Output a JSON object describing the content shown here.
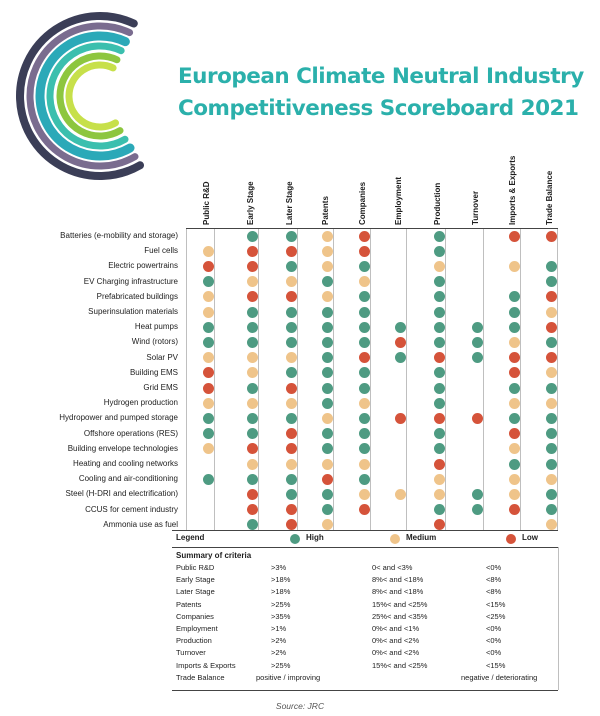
{
  "title_line1": "European Climate Neutral Industry",
  "title_line2": "Competitiveness Scoreboard 2021",
  "colors": {
    "high": "#4e9b82",
    "medium": "#efc48a",
    "low": "#d5533a",
    "title": "#2bb0ab"
  },
  "logo_arcs": [
    "#3b3e57",
    "#7a6c8f",
    "#2ba9b8",
    "#3bbfae",
    "#8dc63f",
    "#c7e04a"
  ],
  "columns": [
    "Public R&D",
    "Early Stage",
    "Later Stage",
    "Patents",
    "Companies",
    "Employment",
    "Production",
    "Turnover",
    "Imports & Exports",
    "Trade Balance"
  ],
  "rows": [
    {
      "label": "Batteries (e-mobility and storage)",
      "cells": [
        "",
        "H",
        "H",
        "M",
        "L",
        "",
        "H",
        "",
        "L",
        "L"
      ]
    },
    {
      "label": "Fuel cells",
      "cells": [
        "M",
        "L",
        "L",
        "M",
        "L",
        "",
        "H",
        "",
        "",
        ""
      ]
    },
    {
      "label": "Electric powertrains",
      "cells": [
        "L",
        "L",
        "H",
        "M",
        "H",
        "",
        "M",
        "",
        "M",
        "H"
      ]
    },
    {
      "label": "EV Charging infrastructure",
      "cells": [
        "H",
        "M",
        "M",
        "H",
        "M",
        "",
        "H",
        "",
        "",
        "H"
      ]
    },
    {
      "label": "Prefabricated buildings",
      "cells": [
        "M",
        "L",
        "L",
        "M",
        "H",
        "",
        "H",
        "",
        "H",
        "L"
      ]
    },
    {
      "label": "Superinsulation materials",
      "cells": [
        "M",
        "H",
        "H",
        "H",
        "H",
        "",
        "H",
        "",
        "H",
        "M"
      ]
    },
    {
      "label": "Heat pumps",
      "cells": [
        "H",
        "H",
        "H",
        "H",
        "H",
        "H",
        "H",
        "H",
        "H",
        "L"
      ]
    },
    {
      "label": "Wind (rotors)",
      "cells": [
        "H",
        "H",
        "H",
        "H",
        "H",
        "L",
        "H",
        "H",
        "M",
        "H"
      ]
    },
    {
      "label": "Solar PV",
      "cells": [
        "M",
        "M",
        "M",
        "H",
        "L",
        "H",
        "L",
        "H",
        "L",
        "L"
      ]
    },
    {
      "label": "Building EMS",
      "cells": [
        "L",
        "M",
        "H",
        "H",
        "H",
        "",
        "H",
        "",
        "L",
        "M"
      ]
    },
    {
      "label": "Grid EMS",
      "cells": [
        "L",
        "H",
        "L",
        "H",
        "H",
        "",
        "H",
        "",
        "H",
        "H"
      ]
    },
    {
      "label": "Hydrogen production",
      "cells": [
        "M",
        "M",
        "M",
        "H",
        "M",
        "",
        "H",
        "",
        "M",
        "M"
      ]
    },
    {
      "label": "Hydropower and pumped storage",
      "cells": [
        "H",
        "H",
        "H",
        "M",
        "H",
        "L",
        "L",
        "L",
        "H",
        "H"
      ]
    },
    {
      "label": "Offshore operations (RES)",
      "cells": [
        "H",
        "H",
        "L",
        "H",
        "H",
        "",
        "H",
        "",
        "L",
        "H"
      ]
    },
    {
      "label": "Building envelope technologies",
      "cells": [
        "M",
        "L",
        "L",
        "H",
        "H",
        "",
        "H",
        "",
        "M",
        "H"
      ]
    },
    {
      "label": "Heating and cooling networks",
      "cells": [
        "",
        "M",
        "M",
        "M",
        "M",
        "",
        "L",
        "",
        "H",
        "H"
      ]
    },
    {
      "label": "Cooling and air-conditioning",
      "cells": [
        "H",
        "H",
        "H",
        "L",
        "H",
        "",
        "M",
        "",
        "M",
        "M"
      ]
    },
    {
      "label": "Steel (H-DRI and electrification)",
      "cells": [
        "",
        "L",
        "H",
        "H",
        "M",
        "M",
        "M",
        "H",
        "M",
        "H"
      ]
    },
    {
      "label": "CCUS for cement industry",
      "cells": [
        "",
        "L",
        "L",
        "H",
        "L",
        "",
        "H",
        "H",
        "L",
        "H"
      ]
    },
    {
      "label": "Ammonia use as fuel",
      "cells": [
        "",
        "H",
        "L",
        "M",
        "",
        "",
        "L",
        "",
        "",
        "M"
      ]
    }
  ],
  "legend": {
    "label": "Legend",
    "high": "High",
    "medium": "Medium",
    "low": "Low"
  },
  "summary": {
    "title": "Summary of criteria",
    "rows": [
      {
        "name": "Public R&D",
        "high": ">3%",
        "medium": "0< and <3%",
        "low": "<0%"
      },
      {
        "name": "Early Stage",
        "high": ">18%",
        "medium": "8%< and <18%",
        "low": "<8%"
      },
      {
        "name": "Later Stage",
        "high": ">18%",
        "medium": "8%< and <18%",
        "low": "<8%"
      },
      {
        "name": "Patents",
        "high": ">25%",
        "medium": "15%< and <25%",
        "low": "<15%"
      },
      {
        "name": "Companies",
        "high": ">35%",
        "medium": "25%< and <35%",
        "low": "<25%"
      },
      {
        "name": "Employment",
        "high": ">1%",
        "medium": "0%< and <1%",
        "low": "<0%"
      },
      {
        "name": "Production",
        "high": ">2%",
        "medium": "0%< and <2%",
        "low": "<0%"
      },
      {
        "name": "Turnover",
        "high": ">2%",
        "medium": "0%< and <2%",
        "low": "<0%"
      },
      {
        "name": "Imports & Exports",
        "high": ">25%",
        "medium": "15%< and <25%",
        "low": "<15%"
      },
      {
        "name": "Trade Balance",
        "high": "positive / improving",
        "medium": "",
        "low": "negative / deteriorating"
      }
    ]
  },
  "source": "Source: JRC"
}
